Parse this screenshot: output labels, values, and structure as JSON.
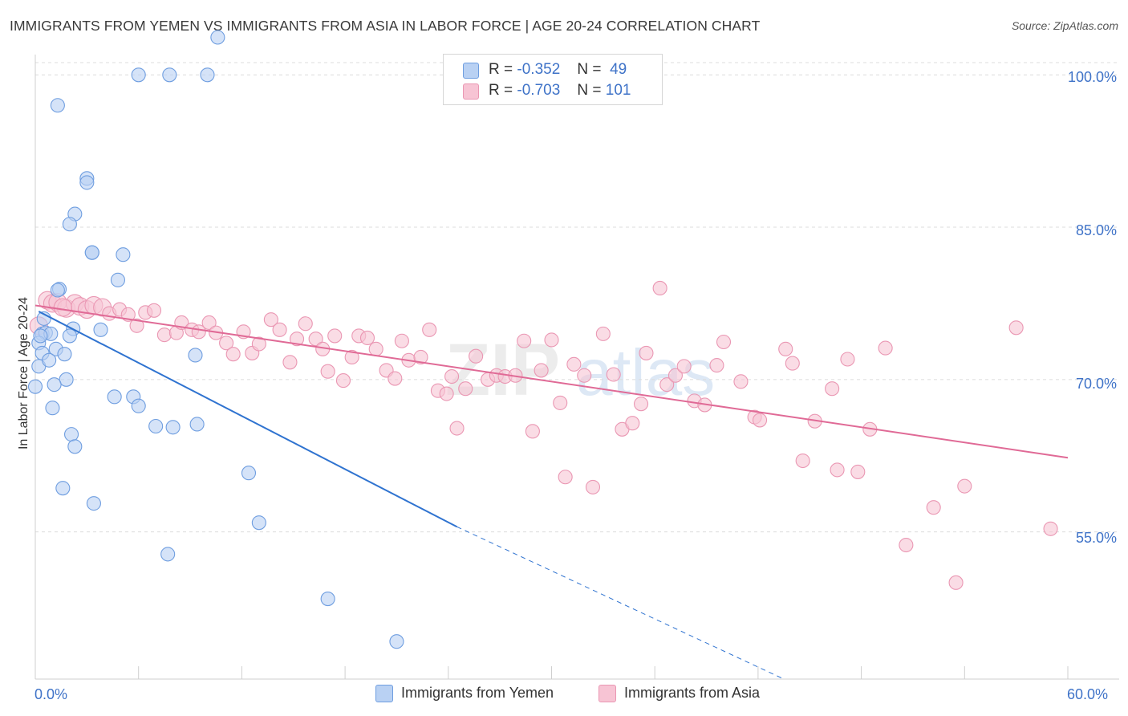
{
  "title": "IMMIGRANTS FROM YEMEN VS IMMIGRANTS FROM ASIA IN LABOR FORCE | AGE 20-24 CORRELATION CHART",
  "source": "Source: ZipAtlas.com",
  "watermark": "ZIPatlas",
  "colors": {
    "yemen_fill": "#b9d1f3",
    "yemen_stroke": "#6f9ee0",
    "yemen_line": "#2f73d0",
    "asia_fill": "#f7c4d4",
    "asia_stroke": "#ea97b3",
    "asia_line": "#e06a96",
    "axis_label": "#3f73c8"
  },
  "legend_stats": [
    {
      "r_label": "R =",
      "r_value": "-0.352",
      "n_label": "N =",
      "n_value": "49"
    },
    {
      "r_label": "R =",
      "r_value": "-0.703",
      "n_label": "N =",
      "n_value": "101"
    }
  ],
  "chart_data": {
    "type": "scatter",
    "title": "IMMIGRANTS FROM YEMEN VS IMMIGRANTS FROM ASIA IN LABOR FORCE | AGE 20-24 CORRELATION CHART",
    "xlabel": "",
    "ylabel": "In Labor Force | Age 20-24",
    "xlim": [
      0,
      60
    ],
    "ylim": [
      40.5,
      102
    ],
    "x_tick_labels": [
      "0.0%",
      "60.0%"
    ],
    "y_ticks": [
      55,
      70,
      85,
      100
    ],
    "y_tick_labels": [
      "55.0%",
      "70.0%",
      "85.0%",
      "100.0%"
    ],
    "grid": true,
    "legend_position": "bottom",
    "series": [
      {
        "name": "Immigrants from Yemen",
        "points": [
          [
            6.0,
            100.0
          ],
          [
            7.8,
            100.0
          ],
          [
            10.0,
            100.0
          ],
          [
            1.3,
            97.0
          ],
          [
            3.0,
            89.8
          ],
          [
            3.0,
            89.4
          ],
          [
            2.3,
            86.3
          ],
          [
            2.0,
            85.3
          ],
          [
            3.3,
            82.5
          ],
          [
            3.3,
            82.5
          ],
          [
            5.1,
            82.3
          ],
          [
            4.8,
            79.8
          ],
          [
            1.4,
            78.9
          ],
          [
            1.3,
            78.8
          ],
          [
            0.5,
            76.0
          ],
          [
            2.2,
            75.0
          ],
          [
            3.8,
            74.9
          ],
          [
            0.4,
            74.5
          ],
          [
            0.6,
            74.6
          ],
          [
            0.9,
            74.5
          ],
          [
            2.0,
            74.3
          ],
          [
            0.2,
            73.6
          ],
          [
            1.2,
            73.0
          ],
          [
            1.7,
            72.5
          ],
          [
            0.4,
            72.6
          ],
          [
            0.2,
            71.3
          ],
          [
            0.8,
            71.9
          ],
          [
            1.8,
            70.0
          ],
          [
            1.1,
            69.5
          ],
          [
            0.0,
            69.3
          ],
          [
            9.3,
            72.4
          ],
          [
            4.6,
            68.3
          ],
          [
            5.7,
            68.3
          ],
          [
            6.0,
            67.4
          ],
          [
            1.0,
            67.2
          ],
          [
            7.0,
            65.4
          ],
          [
            8.0,
            65.3
          ],
          [
            9.4,
            65.6
          ],
          [
            2.1,
            64.6
          ],
          [
            2.3,
            63.4
          ],
          [
            12.4,
            60.8
          ],
          [
            1.6,
            59.3
          ],
          [
            3.4,
            57.8
          ],
          [
            13.0,
            55.9
          ],
          [
            7.7,
            52.8
          ],
          [
            17.0,
            48.4
          ],
          [
            21.0,
            44.2
          ],
          [
            10.6,
            103.7
          ],
          [
            0.3,
            74.3
          ]
        ],
        "trend": {
          "x": [
            0.2,
            24.5
          ],
          "y": [
            76.7,
            55.5
          ],
          "dashed_to": [
            43.5,
            40.5
          ]
        }
      },
      {
        "name": "Immigrants from Asia",
        "points": [
          [
            0.2,
            75.3
          ],
          [
            0.7,
            77.8
          ],
          [
            1.0,
            77.5
          ],
          [
            1.3,
            77.6
          ],
          [
            1.8,
            77.0
          ],
          [
            2.3,
            77.5
          ],
          [
            2.6,
            77.2
          ],
          [
            3.0,
            76.9
          ],
          [
            3.4,
            77.3
          ],
          [
            3.9,
            77.1
          ],
          [
            4.3,
            76.5
          ],
          [
            4.9,
            76.9
          ],
          [
            5.4,
            76.4
          ],
          [
            6.4,
            76.6
          ],
          [
            6.9,
            76.8
          ],
          [
            5.9,
            75.3
          ],
          [
            7.5,
            74.4
          ],
          [
            8.2,
            74.6
          ],
          [
            8.5,
            75.6
          ],
          [
            9.1,
            74.9
          ],
          [
            9.5,
            74.7
          ],
          [
            10.1,
            75.6
          ],
          [
            10.5,
            74.6
          ],
          [
            11.1,
            73.6
          ],
          [
            11.5,
            72.5
          ],
          [
            12.1,
            74.7
          ],
          [
            12.6,
            72.6
          ],
          [
            13.0,
            73.5
          ],
          [
            13.7,
            75.9
          ],
          [
            14.2,
            74.9
          ],
          [
            14.8,
            71.7
          ],
          [
            15.2,
            74.0
          ],
          [
            15.7,
            75.5
          ],
          [
            16.3,
            74.0
          ],
          [
            16.7,
            73.0
          ],
          [
            17.0,
            70.8
          ],
          [
            17.4,
            74.3
          ],
          [
            17.9,
            69.9
          ],
          [
            18.4,
            72.2
          ],
          [
            18.8,
            74.3
          ],
          [
            19.3,
            74.1
          ],
          [
            19.8,
            73.0
          ],
          [
            20.4,
            70.9
          ],
          [
            20.9,
            70.1
          ],
          [
            21.3,
            73.8
          ],
          [
            21.7,
            71.9
          ],
          [
            22.4,
            72.2
          ],
          [
            22.9,
            74.9
          ],
          [
            23.4,
            68.9
          ],
          [
            23.9,
            68.6
          ],
          [
            24.2,
            70.3
          ],
          [
            24.5,
            65.2
          ],
          [
            25.0,
            69.1
          ],
          [
            25.6,
            72.3
          ],
          [
            26.3,
            70.0
          ],
          [
            26.8,
            70.4
          ],
          [
            27.3,
            70.3
          ],
          [
            27.9,
            70.4
          ],
          [
            28.4,
            73.8
          ],
          [
            28.9,
            64.9
          ],
          [
            29.4,
            70.9
          ],
          [
            30.0,
            73.9
          ],
          [
            30.5,
            67.7
          ],
          [
            30.8,
            60.4
          ],
          [
            31.3,
            71.5
          ],
          [
            31.9,
            70.4
          ],
          [
            32.4,
            59.4
          ],
          [
            33.0,
            74.5
          ],
          [
            33.6,
            70.5
          ],
          [
            34.1,
            65.1
          ],
          [
            34.7,
            65.7
          ],
          [
            35.2,
            67.6
          ],
          [
            35.5,
            72.6
          ],
          [
            36.3,
            79.0
          ],
          [
            36.7,
            69.5
          ],
          [
            37.2,
            70.4
          ],
          [
            37.7,
            71.3
          ],
          [
            38.3,
            67.9
          ],
          [
            38.9,
            67.5
          ],
          [
            39.6,
            71.4
          ],
          [
            40.0,
            73.7
          ],
          [
            41.0,
            69.8
          ],
          [
            41.8,
            66.3
          ],
          [
            42.1,
            66.0
          ],
          [
            43.6,
            73.0
          ],
          [
            44.0,
            71.6
          ],
          [
            44.6,
            62.0
          ],
          [
            45.3,
            65.9
          ],
          [
            46.3,
            69.1
          ],
          [
            46.6,
            61.1
          ],
          [
            47.2,
            72.0
          ],
          [
            47.8,
            60.9
          ],
          [
            48.5,
            65.1
          ],
          [
            49.4,
            73.1
          ],
          [
            50.6,
            53.7
          ],
          [
            52.2,
            57.4
          ],
          [
            53.5,
            50.0
          ],
          [
            54.0,
            59.5
          ],
          [
            57.0,
            75.1
          ],
          [
            59.0,
            55.3
          ],
          [
            1.6,
            77.1
          ]
        ],
        "trend": {
          "x": [
            0.0,
            60.0
          ],
          "y": [
            77.3,
            62.3
          ]
        }
      }
    ]
  },
  "x_tick_left": "0.0%",
  "x_tick_right": "60.0%"
}
